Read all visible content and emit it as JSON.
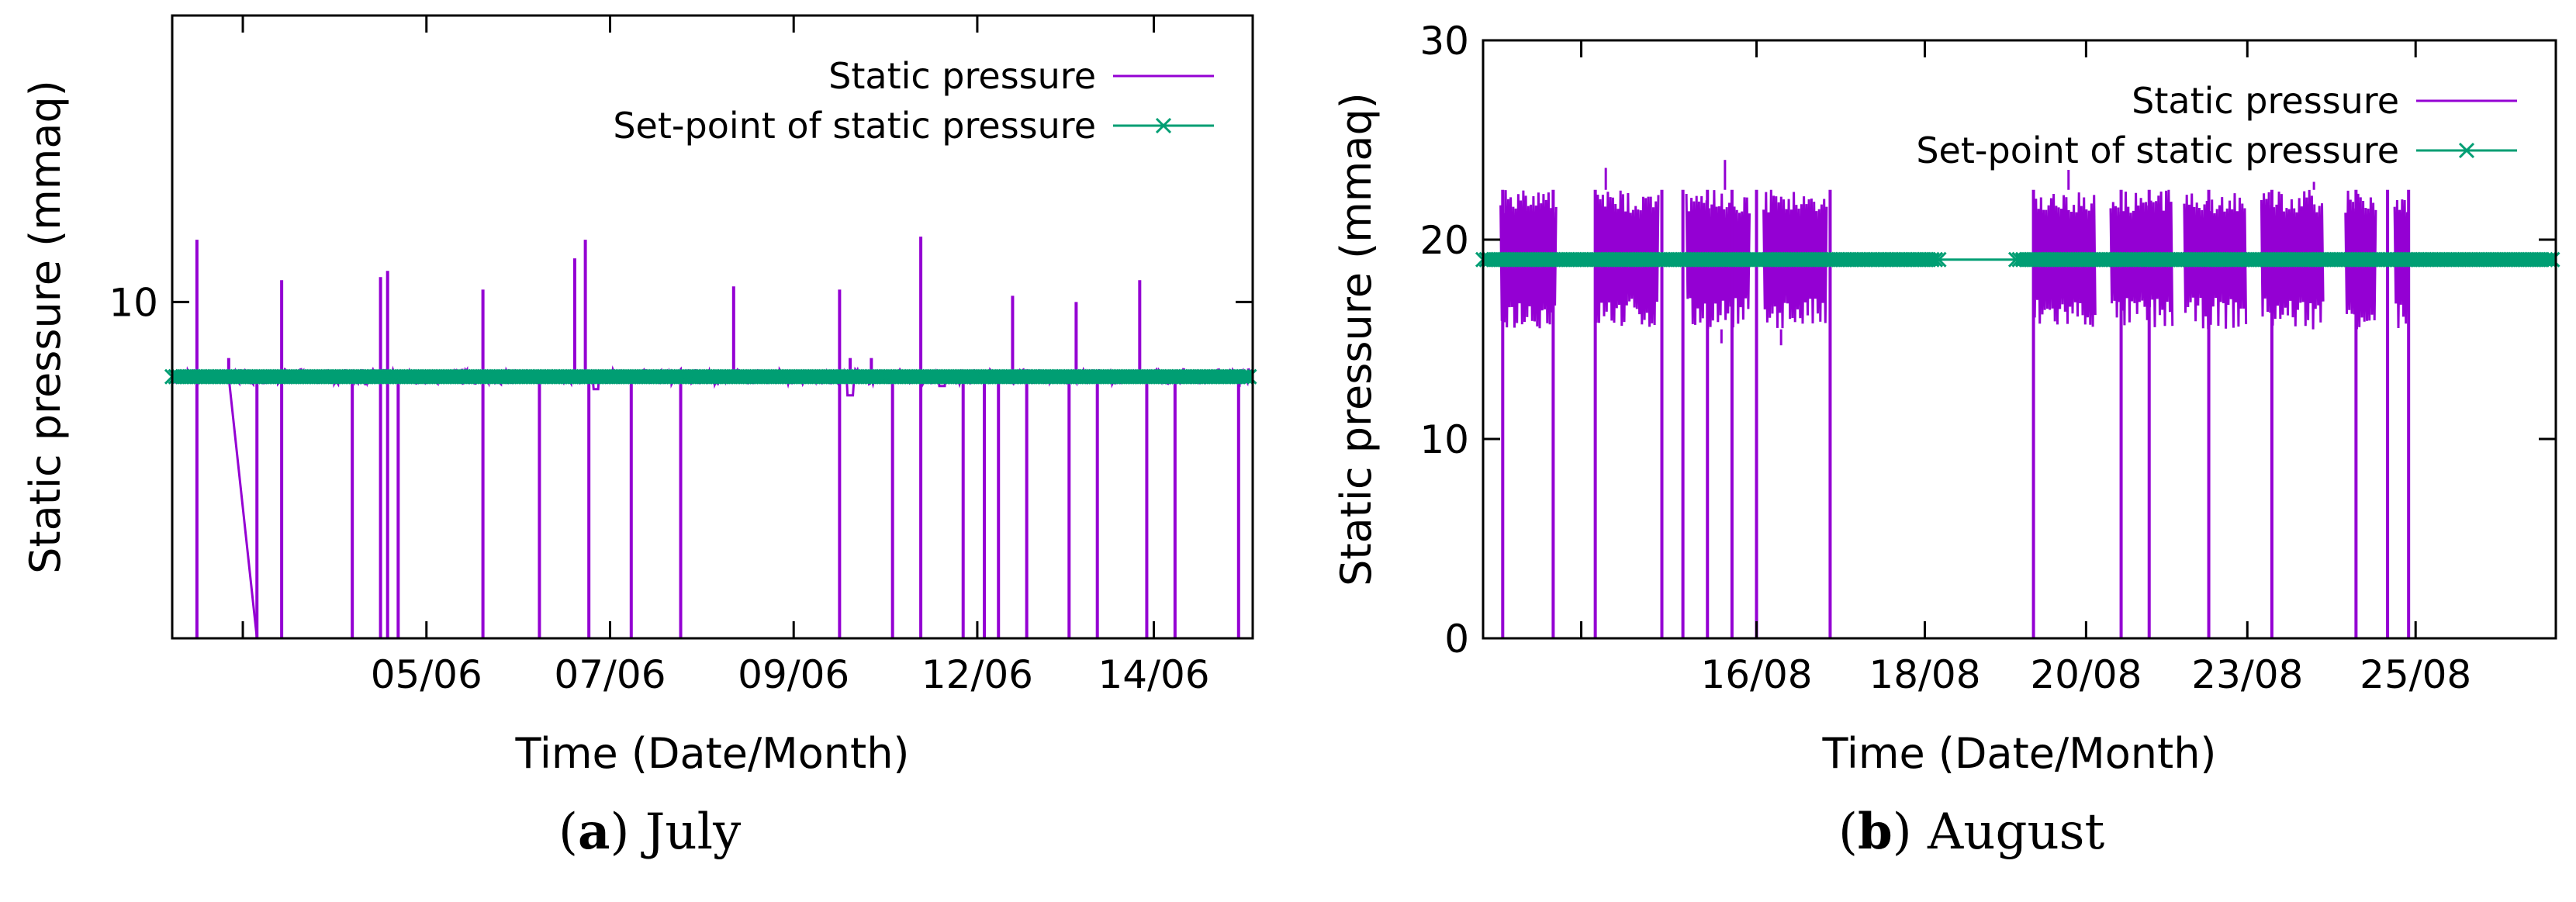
{
  "colors": {
    "static_pressure": "#9400d3",
    "setpoint": "#009e73",
    "axis": "#000000"
  },
  "chart_data": [
    {
      "type": "line",
      "caption_letter": "a",
      "caption_text": "July",
      "xlabel": "Time (Date/Month)",
      "ylabel": "Static pressure (mmaq)",
      "ylim": [
        4.6,
        14.6
      ],
      "yticks": [
        10
      ],
      "ytick_labels": [
        "10"
      ],
      "xlim": [
        0,
        15.3
      ],
      "xticks": [
        1.0,
        3.6,
        6.2,
        8.8,
        11.4,
        13.9
      ],
      "xtick_labels": [
        "05/06",
        "07/06",
        "09/06",
        "12/06",
        "14/06"
      ],
      "xtick_labels_positions_index": [
        1,
        2,
        3,
        4,
        5
      ],
      "legend": {
        "placement": "top-right",
        "entries": [
          "Static pressure",
          "Set-point of static pressure"
        ]
      },
      "series": [
        {
          "name": "Static pressure",
          "baseline": 8.8,
          "noise": 0.12,
          "spikes_up": [
            [
              0.35,
              11.0
            ],
            [
              0.8,
              9.1
            ],
            [
              1.55,
              10.35
            ],
            [
              2.95,
              10.4
            ],
            [
              3.05,
              10.5
            ],
            [
              4.4,
              10.2
            ],
            [
              5.7,
              10.7
            ],
            [
              5.85,
              11.0
            ],
            [
              7.95,
              10.25
            ],
            [
              9.45,
              10.2
            ],
            [
              9.6,
              9.1
            ],
            [
              9.9,
              9.1
            ],
            [
              10.6,
              11.05
            ],
            [
              11.9,
              10.1
            ],
            [
              12.8,
              10.0
            ],
            [
              13.7,
              10.35
            ]
          ],
          "spikes_down": [
            0.35,
            1.2,
            1.55,
            2.55,
            2.95,
            3.05,
            3.2,
            4.4,
            5.2,
            5.9,
            6.5,
            7.2,
            9.45,
            10.2,
            10.6,
            11.2,
            11.5,
            11.7,
            12.1,
            12.7,
            13.1,
            13.8,
            14.2,
            15.1
          ],
          "bumps": [
            [
              6.0,
              8.6
            ],
            [
              9.6,
              8.5
            ],
            [
              10.9,
              8.65
            ]
          ],
          "drift_start": 0.8,
          "drift_end": 1.2
        },
        {
          "name": "Set-point of static pressure",
          "value": 8.8,
          "segments": [
            [
              0,
              15.3
            ]
          ]
        }
      ]
    },
    {
      "type": "line",
      "caption_letter": "b",
      "caption_text": "August",
      "xlabel": "Time (Date/Month)",
      "ylabel": "Static pressure (mmaq)",
      "ylim": [
        0,
        30
      ],
      "yticks": [
        0,
        10,
        20,
        30
      ],
      "ytick_labels": [
        "0",
        "10",
        "20",
        "30"
      ],
      "xlim": [
        0,
        15.3
      ],
      "xticks": [
        1.4,
        3.9,
        6.3,
        8.6,
        10.9,
        13.3
      ],
      "xtick_labels": [
        "16/08",
        "18/08",
        "20/08",
        "23/08",
        "25/08"
      ],
      "xtick_labels_positions_index": [
        1,
        2,
        3,
        4,
        5
      ],
      "legend": {
        "placement": "top-right",
        "entries": [
          "Static pressure",
          "Set-point of static pressure"
        ]
      },
      "series": [
        {
          "name": "Static pressure",
          "low": 15.5,
          "high": 22.5,
          "blocks": [
            [
              0.25,
              1.05
            ],
            [
              1.6,
              2.5
            ],
            [
              2.9,
              3.8
            ],
            [
              4.0,
              4.9
            ],
            [
              7.85,
              8.75
            ],
            [
              8.95,
              9.85
            ],
            [
              10.0,
              10.9
            ],
            [
              11.1,
              12.0
            ],
            [
              12.3,
              12.75
            ],
            [
              13.0,
              13.2
            ]
          ],
          "drops_to_zero": [
            0.28,
            1.0,
            1.6,
            2.55,
            2.85,
            3.2,
            3.55,
            3.9,
            4.95,
            7.85,
            9.1,
            9.5,
            10.35,
            11.25,
            12.45,
            12.9,
            13.2
          ],
          "peaks": [
            [
              1.75,
              23.6
            ],
            [
              3.45,
              24.0
            ],
            [
              8.35,
              23.5
            ],
            [
              11.85,
              22.9
            ]
          ],
          "dips": [
            [
              3.4,
              14.8
            ],
            [
              4.25,
              14.7
            ]
          ]
        },
        {
          "name": "Set-point of static pressure",
          "value": 19,
          "segments": [
            [
              0,
              6.5
            ],
            [
              7.6,
              15.3
            ]
          ],
          "bridge": [
            6.5,
            7.6
          ]
        }
      ]
    }
  ]
}
